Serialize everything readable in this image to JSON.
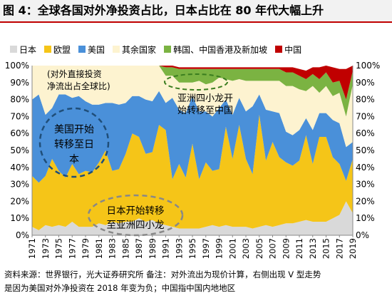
{
  "title": "图 4：全球各国对外净投资占比，日本占比在 80 年代大幅上升",
  "legend": [
    {
      "label": "日本",
      "color": "#d9d9d9"
    },
    {
      "label": "欧盟",
      "color": "#f5c518"
    },
    {
      "label": "美国",
      "color": "#4a90d9"
    },
    {
      "label": "其余国家",
      "color": "#fdf3d0"
    },
    {
      "label": "韩国、中国香港及新加坡",
      "color": "#7bb342"
    },
    {
      "label": "中国",
      "color": "#c00000"
    }
  ],
  "chart_data": {
    "type": "area",
    "title": "全球各国对外净投资占比",
    "stacked": true,
    "x": [
      1971,
      1972,
      1973,
      1974,
      1975,
      1976,
      1977,
      1978,
      1979,
      1980,
      1981,
      1982,
      1983,
      1984,
      1985,
      1986,
      1987,
      1988,
      1989,
      1990,
      1991,
      1992,
      1993,
      1994,
      1995,
      1996,
      1997,
      1998,
      1999,
      2000,
      2001,
      2002,
      2003,
      2004,
      2005,
      2006,
      2007,
      2008,
      2009,
      2010,
      2011,
      2012,
      2013,
      2014,
      2015,
      2016,
      2017,
      2018,
      2019
    ],
    "xticks": [
      1971,
      1973,
      1975,
      1977,
      1979,
      1981,
      1983,
      1985,
      1987,
      1989,
      1991,
      1993,
      1995,
      1997,
      1999,
      2001,
      2003,
      2005,
      2007,
      2009,
      2011,
      2013,
      2015,
      2017,
      2019
    ],
    "yticks": [
      "0%",
      "10%",
      "20%",
      "30%",
      "40%",
      "50%",
      "60%",
      "70%",
      "80%",
      "90%",
      "100%"
    ],
    "ylim": [
      0,
      100
    ],
    "y_unit": "%",
    "series": [
      {
        "name": "日本",
        "color": "#d9d9d9",
        "values": [
          5,
          3,
          6,
          5,
          6,
          5,
          8,
          5,
          5,
          5,
          7,
          6,
          8,
          7,
          8,
          8,
          10,
          8,
          9,
          7,
          6,
          5,
          4,
          4,
          4,
          4,
          5,
          6,
          5,
          6,
          5,
          5,
          5,
          4,
          5,
          6,
          5,
          6,
          7,
          7,
          8,
          9,
          8,
          8,
          8,
          10,
          12,
          20,
          13
        ]
      },
      {
        "name": "欧盟",
        "color": "#f5c518",
        "values": [
          30,
          28,
          29,
          40,
          32,
          29,
          34,
          31,
          33,
          32,
          36,
          44,
          30,
          32,
          40,
          52,
          48,
          40,
          40,
          58,
          56,
          28,
          38,
          30,
          50,
          29,
          38,
          32,
          34,
          58,
          40,
          60,
          40,
          32,
          66,
          38,
          50,
          40,
          36,
          34,
          36,
          50,
          34,
          50,
          50,
          36,
          30,
          12,
          32
        ]
      },
      {
        "name": "美国",
        "color": "#4a90d9",
        "values": [
          45,
          52,
          36,
          30,
          45,
          49,
          39,
          46,
          41,
          40,
          34,
          28,
          40,
          38,
          30,
          22,
          24,
          32,
          30,
          20,
          16,
          48,
          32,
          38,
          28,
          40,
          30,
          32,
          36,
          16,
          26,
          16,
          28,
          40,
          12,
          30,
          18,
          26,
          18,
          18,
          18,
          10,
          20,
          14,
          14,
          22,
          24,
          20,
          10
        ]
      },
      {
        "name": "其余国家",
        "color": "#fdf3d0",
        "values": [
          20,
          17,
          29,
          25,
          17,
          17,
          19,
          18,
          21,
          23,
          23,
          22,
          22,
          23,
          22,
          18,
          18,
          20,
          21,
          15,
          16,
          13,
          16,
          18,
          8,
          18,
          16,
          20,
          18,
          12,
          20,
          11,
          18,
          15,
          8,
          17,
          18,
          19,
          27,
          29,
          24,
          16,
          26,
          12,
          16,
          14,
          18,
          18,
          34
        ]
      },
      {
        "name": "韩国、中国香港及新加坡",
        "color": "#7bb342",
        "values": [
          0,
          0,
          0,
          0,
          0,
          0,
          0,
          0,
          0,
          0,
          0,
          0,
          0,
          0,
          0,
          0,
          0,
          0,
          0,
          0,
          5,
          5,
          8,
          8,
          8,
          7,
          9,
          8,
          5,
          6,
          7,
          6,
          7,
          7,
          7,
          7,
          7,
          7,
          8,
          8,
          8,
          7,
          7,
          8,
          8,
          8,
          7,
          10,
          8
        ]
      },
      {
        "name": "中国",
        "color": "#c00000",
        "values": [
          0,
          0,
          0,
          0,
          0,
          0,
          0,
          0,
          0,
          0,
          0,
          0,
          0,
          0,
          0,
          0,
          0,
          0,
          0,
          0,
          1,
          1,
          1,
          1,
          1,
          1,
          1,
          1,
          1,
          1,
          1,
          1,
          1,
          1,
          1,
          1,
          1,
          1,
          3,
          3,
          4,
          5,
          4,
          7,
          4,
          9,
          7,
          18,
          3
        ]
      }
    ],
    "annotations": [
      {
        "id": "a1",
        "lines": [
          "(对外直接投资",
          "净流出占全球比)"
        ]
      },
      {
        "id": "a2",
        "lines": [
          "亚洲四小龙开",
          "始转移至中国"
        ]
      },
      {
        "id": "a3",
        "lines": [
          "美国开始",
          "转移至日",
          "本"
        ]
      },
      {
        "id": "a4",
        "lines": [
          "日本开始转移",
          "至亚洲四小龙"
        ]
      }
    ]
  },
  "footnote": {
    "line1": "资料来源：世界银行，光大证券研究所   备注：对外流出为现价计算，右侧出现 V 型走势",
    "line2": "是因为美国对外净投资在 2018 年变为负；中国指中国内地地区"
  }
}
